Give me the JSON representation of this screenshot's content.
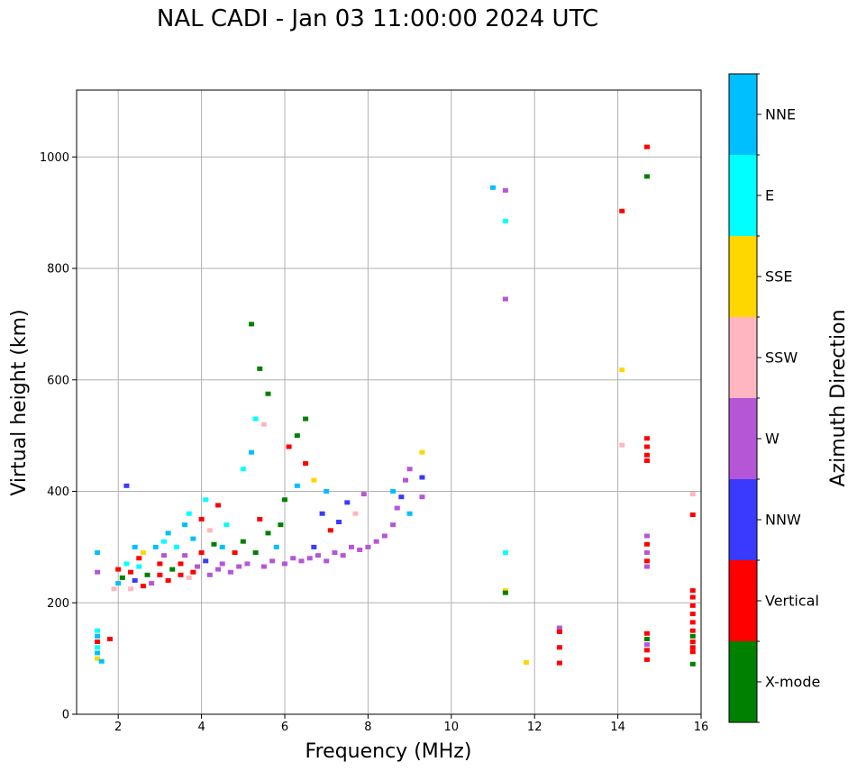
{
  "chart_data": {
    "type": "scatter",
    "title": "NAL CADI - Jan 03 11:00:00 2024 UTC",
    "xlabel": "Frequency (MHz)",
    "ylabel": "Virtual height (km)",
    "xlim": [
      1,
      16
    ],
    "ylim": [
      0,
      1120
    ],
    "xticks": [
      "2",
      "4",
      "6",
      "8",
      "10",
      "12",
      "14",
      "16"
    ],
    "yticks": [
      "0",
      "200",
      "400",
      "600",
      "800",
      "1000"
    ],
    "grid": true,
    "colorbar": {
      "label": "Azimuth Direction",
      "categories": [
        {
          "name": "X-mode",
          "color": "#008000"
        },
        {
          "name": "Vertical",
          "color": "#ff0000"
        },
        {
          "name": "NNW",
          "color": "#3a3aff"
        },
        {
          "name": "W",
          "color": "#b556d6"
        },
        {
          "name": "SSW",
          "color": "#ffb6c1"
        },
        {
          "name": "SSE",
          "color": "#ffd700"
        },
        {
          "name": "E",
          "color": "#00ffff"
        },
        {
          "name": "NNE",
          "color": "#00bfff"
        }
      ]
    },
    "points": [
      [
        1.5,
        100,
        "SSE"
      ],
      [
        1.5,
        110,
        "NNE"
      ],
      [
        1.5,
        120,
        "E"
      ],
      [
        1.5,
        130,
        "Vertical"
      ],
      [
        1.5,
        140,
        "NNE"
      ],
      [
        1.5,
        150,
        "E"
      ],
      [
        1.6,
        95,
        "NNE"
      ],
      [
        1.8,
        135,
        "Vertical"
      ],
      [
        1.5,
        255,
        "W"
      ],
      [
        1.5,
        290,
        "NNE"
      ],
      [
        1.9,
        225,
        "SSW"
      ],
      [
        2.0,
        235,
        "NNE"
      ],
      [
        2.0,
        260,
        "Vertical"
      ],
      [
        2.1,
        245,
        "X-mode"
      ],
      [
        2.2,
        410,
        "NNW"
      ],
      [
        2.2,
        270,
        "E"
      ],
      [
        2.3,
        255,
        "Vertical"
      ],
      [
        2.3,
        225,
        "SSW"
      ],
      [
        2.4,
        300,
        "NNE"
      ],
      [
        2.4,
        240,
        "NNW"
      ],
      [
        2.5,
        280,
        "Vertical"
      ],
      [
        2.5,
        265,
        "E"
      ],
      [
        2.6,
        290,
        "SSE"
      ],
      [
        2.6,
        230,
        "Vertical"
      ],
      [
        2.7,
        250,
        "X-mode"
      ],
      [
        2.8,
        235,
        "W"
      ],
      [
        2.9,
        300,
        "NNE"
      ],
      [
        3.0,
        250,
        "Vertical"
      ],
      [
        3.0,
        270,
        "Vertical"
      ],
      [
        3.1,
        285,
        "W"
      ],
      [
        3.1,
        310,
        "E"
      ],
      [
        3.2,
        240,
        "Vertical"
      ],
      [
        3.2,
        325,
        "NNE"
      ],
      [
        3.3,
        260,
        "X-mode"
      ],
      [
        3.4,
        300,
        "E"
      ],
      [
        3.5,
        250,
        "Vertical"
      ],
      [
        3.5,
        270,
        "Vertical"
      ],
      [
        3.6,
        340,
        "NNE"
      ],
      [
        3.6,
        285,
        "W"
      ],
      [
        3.7,
        245,
        "SSW"
      ],
      [
        3.7,
        360,
        "E"
      ],
      [
        3.8,
        255,
        "Vertical"
      ],
      [
        3.8,
        315,
        "NNE"
      ],
      [
        3.9,
        265,
        "W"
      ],
      [
        4.0,
        290,
        "Vertical"
      ],
      [
        4.0,
        350,
        "Vertical"
      ],
      [
        4.1,
        275,
        "NNW"
      ],
      [
        4.1,
        385,
        "E"
      ],
      [
        4.2,
        250,
        "W"
      ],
      [
        4.2,
        330,
        "SSW"
      ],
      [
        4.3,
        305,
        "X-mode"
      ],
      [
        4.4,
        260,
        "W"
      ],
      [
        4.4,
        375,
        "Vertical"
      ],
      [
        4.5,
        300,
        "NNE"
      ],
      [
        4.5,
        270,
        "W"
      ],
      [
        4.6,
        340,
        "E"
      ],
      [
        4.7,
        255,
        "W"
      ],
      [
        4.8,
        290,
        "Vertical"
      ],
      [
        4.9,
        265,
        "W"
      ],
      [
        5.0,
        310,
        "X-mode"
      ],
      [
        5.0,
        440,
        "E"
      ],
      [
        5.1,
        270,
        "W"
      ],
      [
        5.2,
        470,
        "NNE"
      ],
      [
        5.2,
        700,
        "X-mode"
      ],
      [
        5.3,
        290,
        "X-mode"
      ],
      [
        5.3,
        530,
        "E"
      ],
      [
        5.4,
        350,
        "Vertical"
      ],
      [
        5.4,
        620,
        "X-mode"
      ],
      [
        5.5,
        265,
        "W"
      ],
      [
        5.5,
        520,
        "SSW"
      ],
      [
        5.6,
        575,
        "X-mode"
      ],
      [
        5.6,
        325,
        "X-mode"
      ],
      [
        5.7,
        275,
        "W"
      ],
      [
        5.8,
        300,
        "NNE"
      ],
      [
        5.9,
        340,
        "X-mode"
      ],
      [
        6.0,
        270,
        "W"
      ],
      [
        6.0,
        385,
        "X-mode"
      ],
      [
        6.1,
        480,
        "Vertical"
      ],
      [
        6.2,
        280,
        "W"
      ],
      [
        6.3,
        410,
        "NNE"
      ],
      [
        6.3,
        500,
        "X-mode"
      ],
      [
        6.4,
        275,
        "W"
      ],
      [
        6.5,
        530,
        "X-mode"
      ],
      [
        6.5,
        450,
        "Vertical"
      ],
      [
        6.6,
        280,
        "W"
      ],
      [
        6.7,
        420,
        "SSE"
      ],
      [
        6.7,
        300,
        "NNW"
      ],
      [
        6.8,
        285,
        "W"
      ],
      [
        6.9,
        360,
        "NNW"
      ],
      [
        7.0,
        275,
        "W"
      ],
      [
        7.0,
        400,
        "NNE"
      ],
      [
        7.1,
        330,
        "Vertical"
      ],
      [
        7.2,
        290,
        "W"
      ],
      [
        7.3,
        345,
        "NNW"
      ],
      [
        7.4,
        285,
        "W"
      ],
      [
        7.5,
        380,
        "NNW"
      ],
      [
        7.6,
        300,
        "W"
      ],
      [
        7.7,
        360,
        "SSW"
      ],
      [
        7.8,
        295,
        "W"
      ],
      [
        7.9,
        395,
        "W"
      ],
      [
        8.0,
        300,
        "W"
      ],
      [
        8.2,
        310,
        "W"
      ],
      [
        8.4,
        320,
        "W"
      ],
      [
        8.6,
        340,
        "W"
      ],
      [
        8.6,
        400,
        "NNE"
      ],
      [
        8.7,
        370,
        "W"
      ],
      [
        8.8,
        390,
        "NNW"
      ],
      [
        8.9,
        420,
        "W"
      ],
      [
        9.0,
        440,
        "W"
      ],
      [
        9.0,
        360,
        "NNE"
      ],
      [
        9.3,
        470,
        "SSE"
      ],
      [
        9.3,
        425,
        "NNW"
      ],
      [
        9.3,
        390,
        "W"
      ],
      [
        11.0,
        945,
        "NNE"
      ],
      [
        11.3,
        940,
        "W"
      ],
      [
        11.3,
        885,
        "E"
      ],
      [
        11.3,
        745,
        "W"
      ],
      [
        11.3,
        290,
        "E"
      ],
      [
        11.3,
        222,
        "SSE"
      ],
      [
        11.3,
        218,
        "X-mode"
      ],
      [
        11.8,
        93,
        "SSE"
      ],
      [
        12.6,
        155,
        "W"
      ],
      [
        12.6,
        148,
        "Vertical"
      ],
      [
        12.6,
        120,
        "Vertical"
      ],
      [
        12.6,
        92,
        "Vertical"
      ],
      [
        14.1,
        903,
        "Vertical"
      ],
      [
        14.1,
        618,
        "SSE"
      ],
      [
        14.1,
        483,
        "SSW"
      ],
      [
        14.7,
        1018,
        "Vertical"
      ],
      [
        14.7,
        965,
        "X-mode"
      ],
      [
        14.7,
        495,
        "Vertical"
      ],
      [
        14.7,
        480,
        "Vertical"
      ],
      [
        14.7,
        465,
        "Vertical"
      ],
      [
        14.7,
        455,
        "Vertical"
      ],
      [
        14.7,
        320,
        "W"
      ],
      [
        14.7,
        305,
        "Vertical"
      ],
      [
        14.7,
        290,
        "W"
      ],
      [
        14.7,
        275,
        "Vertical"
      ],
      [
        14.7,
        265,
        "W"
      ],
      [
        14.7,
        145,
        "Vertical"
      ],
      [
        14.7,
        135,
        "X-mode"
      ],
      [
        14.7,
        125,
        "W"
      ],
      [
        14.7,
        115,
        "Vertical"
      ],
      [
        14.7,
        98,
        "Vertical"
      ],
      [
        15.8,
        395,
        "SSW"
      ],
      [
        15.8,
        358,
        "Vertical"
      ],
      [
        15.8,
        222,
        "Vertical"
      ],
      [
        15.8,
        210,
        "Vertical"
      ],
      [
        15.8,
        195,
        "Vertical"
      ],
      [
        15.8,
        180,
        "Vertical"
      ],
      [
        15.8,
        165,
        "Vertical"
      ],
      [
        15.8,
        150,
        "Vertical"
      ],
      [
        15.8,
        140,
        "X-mode"
      ],
      [
        15.8,
        130,
        "Vertical"
      ],
      [
        15.8,
        120,
        "Vertical"
      ],
      [
        15.8,
        112,
        "Vertical"
      ],
      [
        15.8,
        90,
        "X-mode"
      ]
    ]
  }
}
